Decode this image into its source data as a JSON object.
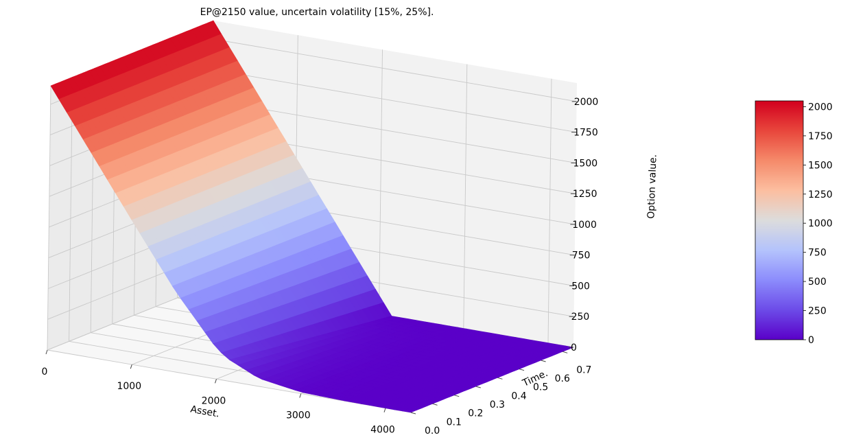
{
  "chart_data": {
    "type": "surface3d",
    "title": "EP@2150 value, uncertain volatility [15%, 25%].",
    "xlabel": "Asset.",
    "ylabel": "Time.",
    "zlabel": "Option value.",
    "strike": 2150,
    "volatility_range": [
      0.15,
      0.25
    ],
    "xlim": [
      0,
      4300
    ],
    "ylim": [
      0,
      0.75
    ],
    "zlim": [
      0,
      2150
    ],
    "x_ticks": [
      "0",
      "1000",
      "2000",
      "3000",
      "4000"
    ],
    "y_ticks": [
      "0.0",
      "0.1",
      "0.2",
      "0.3",
      "0.4",
      "0.5",
      "0.6",
      "0.7"
    ],
    "z_ticks": [
      "0",
      "250",
      "500",
      "750",
      "1000",
      "1250",
      "1500",
      "1750",
      "2000"
    ],
    "colorbar_ticks": [
      "0",
      "250",
      "500",
      "750",
      "1000",
      "1250",
      "1500",
      "1750",
      "2000"
    ],
    "colormap": "rainbow-coolwarm",
    "colorbar_colors": [
      "#5a00c8",
      "#6c4be8",
      "#8c8cfc",
      "#b4c3fc",
      "#dcdcdc",
      "#fcbea0",
      "#f58a6a",
      "#e8463c",
      "#d2001e"
    ],
    "grid": true,
    "series": [
      {
        "x": [
          0,
          500,
          1000,
          1500,
          2000,
          2150,
          2500,
          3000,
          3500,
          4000,
          4300
        ],
        "profile_at_t0": [
          2150,
          1650,
          1150,
          660,
          245,
          175,
          65,
          12,
          2,
          0,
          0
        ]
      }
    ]
  }
}
